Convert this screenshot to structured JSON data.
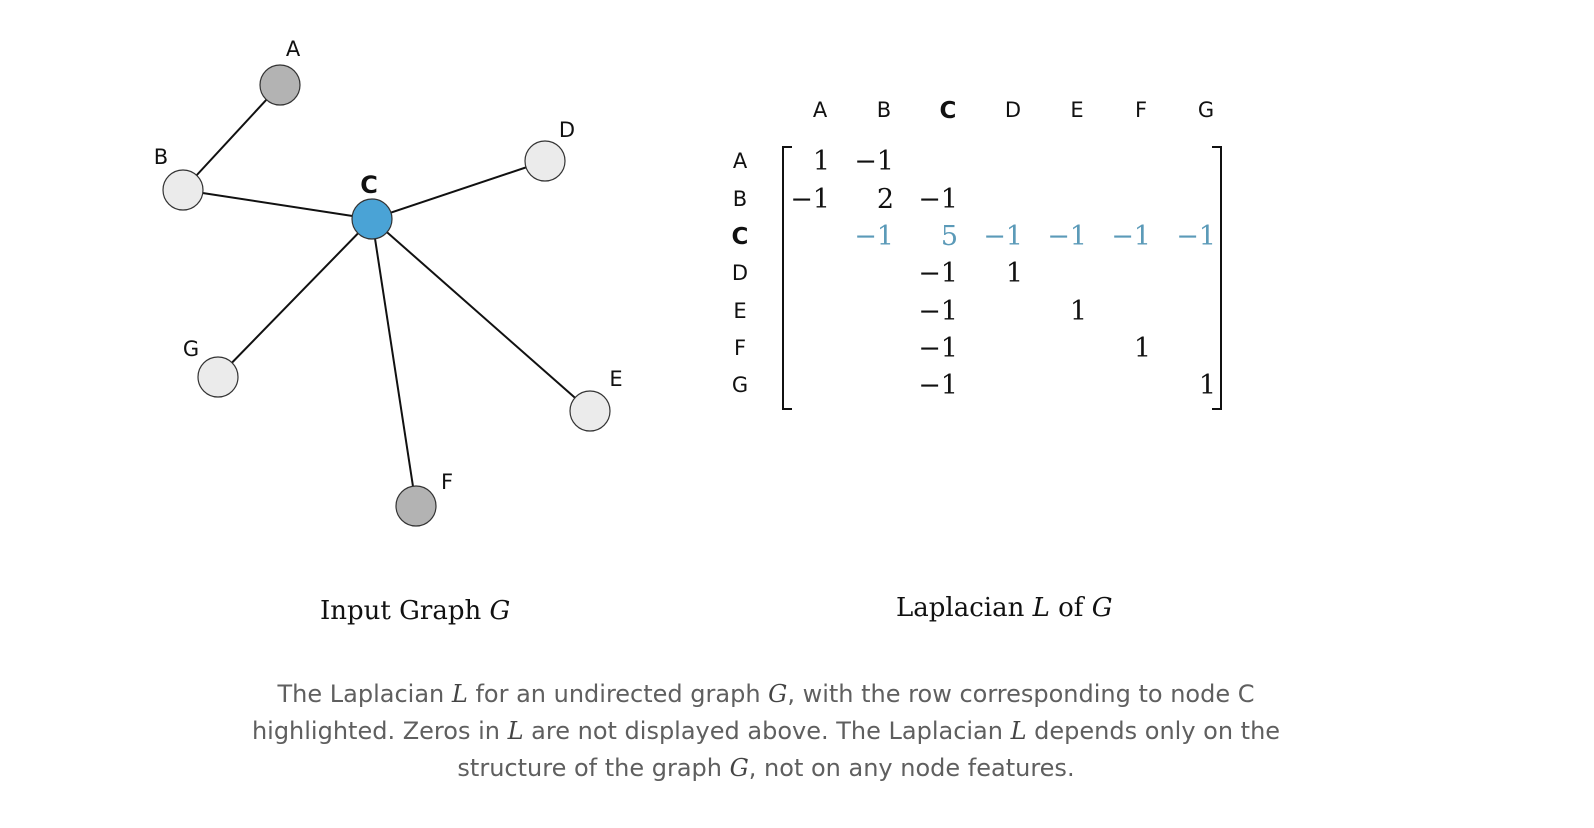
{
  "graph": {
    "title_prefix": "Input Graph ",
    "title_var": "G",
    "nodes": [
      {
        "id": "A",
        "label": "A",
        "fill": "#b3b3b3",
        "bold": false
      },
      {
        "id": "B",
        "label": "B",
        "fill": "#ebebeb",
        "bold": false
      },
      {
        "id": "C",
        "label": "C",
        "fill": "#4aa3d6",
        "bold": true
      },
      {
        "id": "D",
        "label": "D",
        "fill": "#ebebeb",
        "bold": false
      },
      {
        "id": "E",
        "label": "E",
        "fill": "#ebebeb",
        "bold": false
      },
      {
        "id": "F",
        "label": "F",
        "fill": "#b3b3b3",
        "bold": false
      },
      {
        "id": "G",
        "label": "G",
        "fill": "#ebebeb",
        "bold": false
      }
    ],
    "edges": [
      [
        "A",
        "B"
      ],
      [
        "B",
        "C"
      ],
      [
        "C",
        "D"
      ],
      [
        "C",
        "G"
      ],
      [
        "C",
        "F"
      ],
      [
        "C",
        "E"
      ]
    ]
  },
  "laplacian": {
    "title_prefix": "Laplacian ",
    "title_var": "L",
    "title_mid": " of ",
    "title_var2": "G",
    "columns": [
      "A",
      "B",
      "C",
      "D",
      "E",
      "F",
      "G"
    ],
    "rows": [
      "A",
      "B",
      "C",
      "D",
      "E",
      "F",
      "G"
    ],
    "highlight_row": "C",
    "highlight_color": "#5b9ab8",
    "values": [
      [
        "1",
        "−1",
        "",
        "",
        "",
        "",
        ""
      ],
      [
        "−1",
        "2",
        "−1",
        "",
        "",
        "",
        ""
      ],
      [
        "",
        "−1",
        "5",
        "−1",
        "−1",
        "−1",
        "−1"
      ],
      [
        "",
        "",
        "−1",
        "1",
        "",
        "",
        ""
      ],
      [
        "",
        "",
        "−1",
        "",
        "1",
        "",
        ""
      ],
      [
        "",
        "",
        "−1",
        "",
        "",
        "1",
        ""
      ],
      [
        "",
        "",
        "−1",
        "",
        "",
        "",
        "1"
      ]
    ]
  },
  "caption": {
    "p1": "The Laplacian ",
    "v1": "L",
    "p2": " for an undirected graph ",
    "v2": "G",
    "p3": ", with the row corresponding to node C highlighted. Zeros in ",
    "v3": "L",
    "p4": " are not displayed above. The Laplacian ",
    "v4": "L",
    "p5": " depends only on the structure of the graph ",
    "v5": "G",
    "p6": ", not on any node features."
  }
}
